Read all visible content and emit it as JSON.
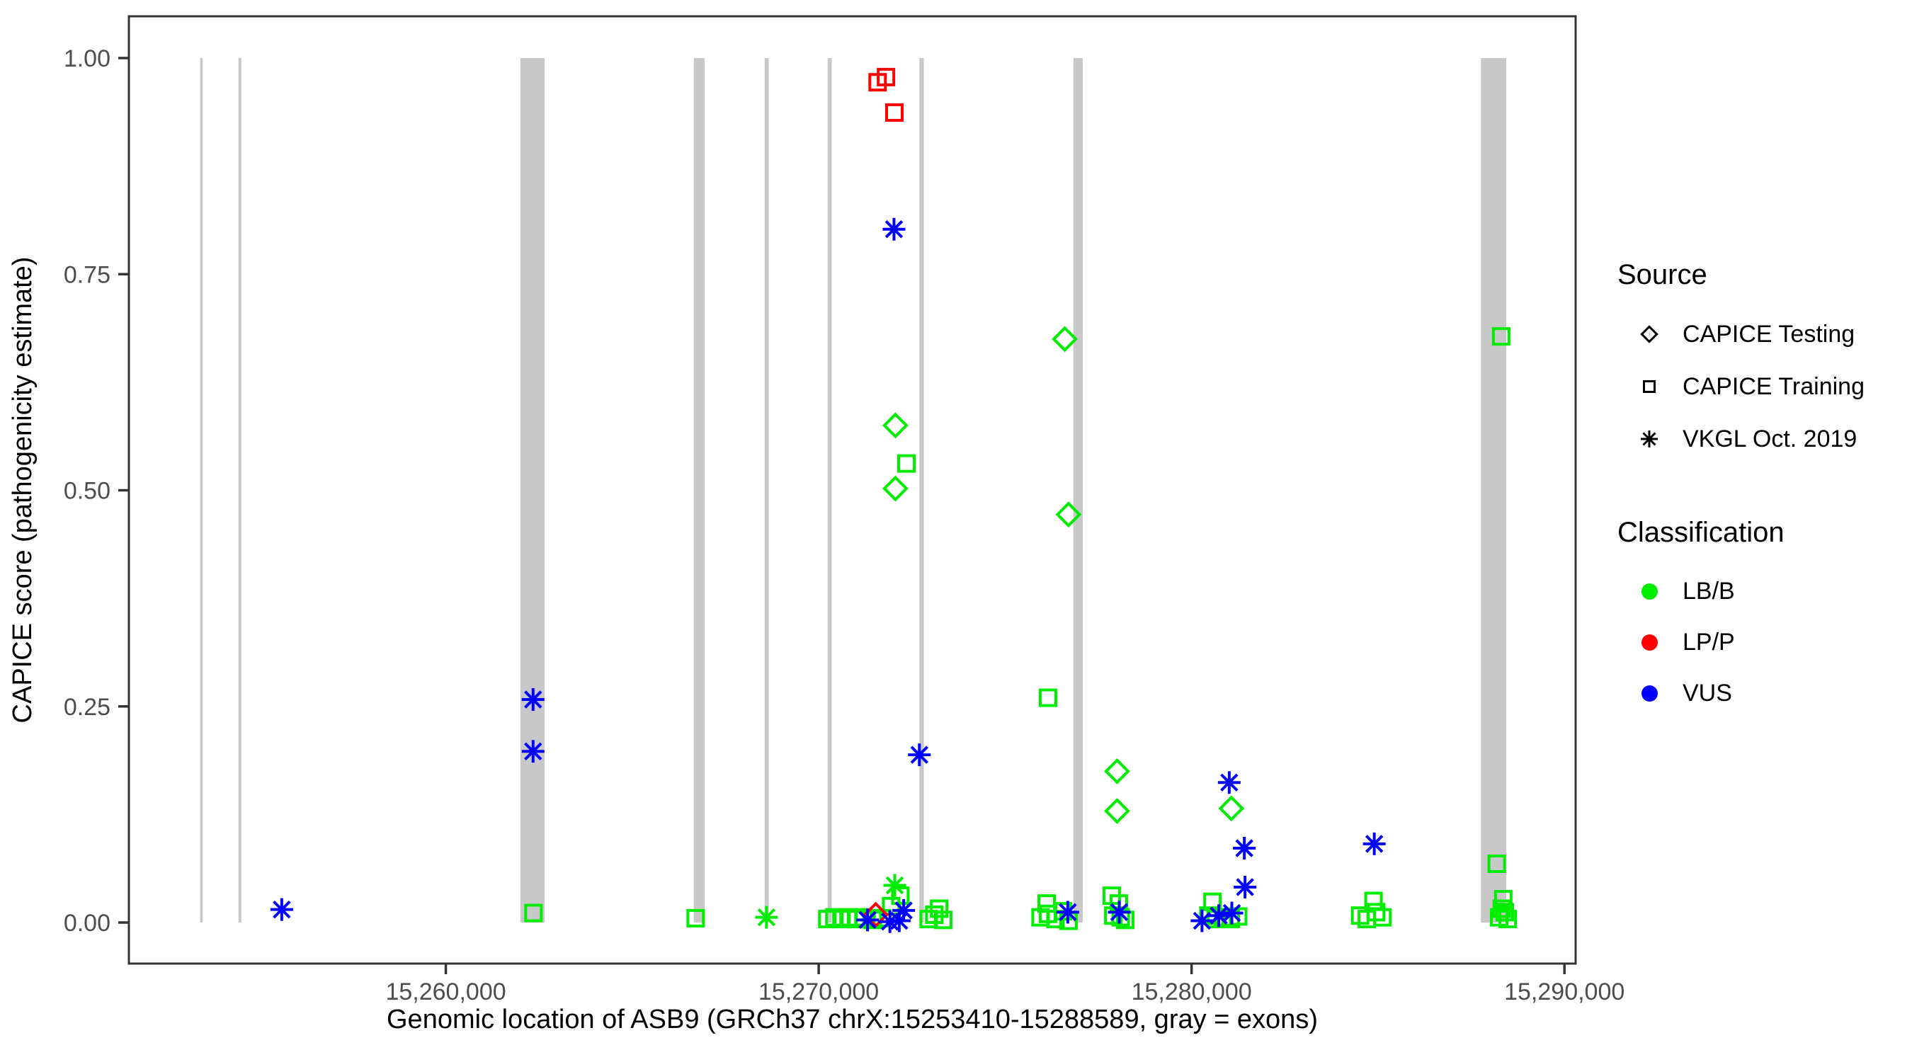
{
  "figure": {
    "background": "#ffffff",
    "panel_border_color": "#333333",
    "tick_label_color": "#4d4d4d",
    "axis_title_color": "#000000"
  },
  "axes": {
    "y": {
      "title": "CAPICE score (pathogenicity estimate)",
      "tick_labels": [
        "0.00",
        "0.25",
        "0.50",
        "0.75",
        "1.00"
      ],
      "tick_values": [
        0,
        0.25,
        0.5,
        0.75,
        1.0
      ]
    },
    "x": {
      "title": "Genomic location of ASB9 (GRCh37 chrX:15253410-15288589, gray = exons)",
      "tick_labels": [
        "15,260,000",
        "15,270,000",
        "15,280,000",
        "15,290,000"
      ],
      "tick_values": [
        15260000,
        15270000,
        15280000,
        15290000
      ]
    }
  },
  "legend": {
    "source": {
      "title": "Source",
      "items": [
        {
          "symbol": "diamond",
          "label": "CAPICE Testing"
        },
        {
          "symbol": "square",
          "label": "CAPICE Training"
        },
        {
          "symbol": "asterisk",
          "label": "VKGL Oct. 2019"
        }
      ]
    },
    "classification": {
      "title": "Classification",
      "items": [
        {
          "label": "LB/B",
          "color": "#00ed00"
        },
        {
          "label": "LP/P",
          "color": "#ff0000"
        },
        {
          "label": "VUS",
          "color": "#0000ff"
        }
      ]
    }
  },
  "chart_data": {
    "type": "scatter",
    "title": "",
    "xlabel": "Genomic location of ASB9 (GRCh37 chrX:15253410-15288589, gray = exons)",
    "ylabel": "CAPICE score (pathogenicity estimate)",
    "xlim": [
      15251500,
      15290300
    ],
    "ylim": [
      0,
      1
    ],
    "grid": false,
    "legend_position": "right",
    "exon_color": "#c8c8c8",
    "gene": "ASB9",
    "gene_region": "GRCh37 chrX:15253410-15288589",
    "exons": [
      [
        15253410,
        15253480
      ],
      [
        15254440,
        15254515
      ],
      [
        15262000,
        15262650
      ],
      [
        15266650,
        15266940
      ],
      [
        15268550,
        15268660
      ],
      [
        15270240,
        15270350
      ],
      [
        15272700,
        15272820
      ],
      [
        15276830,
        15277080
      ],
      [
        15287760,
        15288440
      ]
    ],
    "colors": {
      "LB/B": "#00ed00",
      "LP/P": "#ff0000",
      "VUS": "#0000ff"
    },
    "series": [
      {
        "name": "CAPICE Training",
        "marker": "square",
        "points": [
          [
            15262350,
            0.011,
            "LB/B"
          ],
          [
            15266700,
            0.005,
            "LB/B"
          ],
          [
            15272354,
            0.531,
            "LB/B"
          ],
          [
            15271943,
            0.019,
            "LB/B"
          ],
          [
            15272190,
            0.031,
            "LB/B"
          ],
          [
            15270230,
            0.004,
            "LB/B"
          ],
          [
            15270420,
            0.006,
            "LB/B"
          ],
          [
            15270610,
            0.004,
            "LB/B"
          ],
          [
            15270800,
            0.006,
            "LB/B"
          ],
          [
            15271000,
            0.004,
            "LB/B"
          ],
          [
            15271200,
            0.006,
            "LB/B"
          ],
          [
            15271450,
            0.003,
            "LB/B"
          ],
          [
            15271700,
            0.005,
            "LB/B"
          ],
          [
            15272950,
            0.004,
            "LB/B"
          ],
          [
            15273100,
            0.009,
            "LB/B"
          ],
          [
            15273230,
            0.016,
            "LB/B"
          ],
          [
            15273340,
            0.003,
            "LB/B"
          ],
          [
            15276150,
            0.26,
            "LB/B"
          ],
          [
            15275950,
            0.006,
            "LB/B"
          ],
          [
            15276114,
            0.022,
            "LB/B"
          ],
          [
            15276150,
            0.01,
            "LB/B"
          ],
          [
            15276350,
            0.004,
            "LB/B"
          ],
          [
            15276550,
            0.013,
            "LB/B"
          ],
          [
            15276700,
            0.002,
            "LB/B"
          ],
          [
            15277860,
            0.031,
            "LB/B"
          ],
          [
            15278050,
            0.022,
            "LB/B"
          ],
          [
            15277900,
            0.008,
            "LB/B"
          ],
          [
            15278100,
            0.006,
            "LB/B"
          ],
          [
            15278220,
            0.003,
            "LB/B"
          ],
          [
            15280560,
            0.024,
            "LB/B"
          ],
          [
            15280450,
            0.008,
            "LB/B"
          ],
          [
            15280650,
            0.004,
            "LB/B"
          ],
          [
            15280850,
            0.006,
            "LB/B"
          ],
          [
            15281050,
            0.004,
            "LB/B"
          ],
          [
            15281250,
            0.007,
            "LB/B"
          ],
          [
            15284880,
            0.025,
            "LB/B"
          ],
          [
            15284520,
            0.008,
            "LB/B"
          ],
          [
            15284700,
            0.004,
            "LB/B"
          ],
          [
            15284950,
            0.012,
            "LB/B"
          ],
          [
            15285120,
            0.006,
            "LB/B"
          ],
          [
            15288303,
            0.678,
            "LB/B"
          ],
          [
            15288184,
            0.068,
            "LB/B"
          ],
          [
            15288360,
            0.027,
            "LB/B"
          ],
          [
            15288250,
            0.006,
            "LB/B"
          ],
          [
            15288400,
            0.012,
            "LB/B"
          ],
          [
            15288480,
            0.004,
            "LB/B"
          ],
          [
            15288320,
            0.016,
            "LB/B"
          ],
          [
            15271580,
            0.972,
            "LP/P"
          ],
          [
            15271805,
            0.978,
            "LP/P"
          ],
          [
            15272030,
            0.937,
            "LP/P"
          ]
        ]
      },
      {
        "name": "CAPICE Testing",
        "marker": "diamond",
        "points": [
          [
            15272057,
            0.575,
            "LB/B"
          ],
          [
            15272057,
            0.502,
            "LB/B"
          ],
          [
            15276600,
            0.675,
            "LB/B"
          ],
          [
            15276700,
            0.472,
            "LB/B"
          ],
          [
            15278003,
            0.175,
            "LB/B"
          ],
          [
            15278003,
            0.129,
            "LB/B"
          ],
          [
            15281067,
            0.132,
            "LB/B"
          ],
          [
            15271530,
            0.009,
            "LP/P"
          ]
        ]
      },
      {
        "name": "VKGL Oct. 2019",
        "marker": "asterisk",
        "points": [
          [
            15255600,
            0.015,
            "VUS"
          ],
          [
            15262340,
            0.258,
            "VUS"
          ],
          [
            15262340,
            0.198,
            "VUS"
          ],
          [
            15268600,
            0.006,
            "LB/B"
          ],
          [
            15272020,
            0.802,
            "VUS"
          ],
          [
            15272040,
            0.043,
            "LB/B"
          ],
          [
            15272700,
            0.194,
            "VUS"
          ],
          [
            15271310,
            0.003,
            "VUS"
          ],
          [
            15271910,
            0.001,
            "VUS"
          ],
          [
            15272160,
            0.002,
            "VUS"
          ],
          [
            15272280,
            0.014,
            "VUS"
          ],
          [
            15276680,
            0.012,
            "VUS"
          ],
          [
            15278060,
            0.012,
            "VUS"
          ],
          [
            15281010,
            0.162,
            "VUS"
          ],
          [
            15281415,
            0.086,
            "VUS"
          ],
          [
            15281434,
            0.041,
            "VUS"
          ],
          [
            15280730,
            0.008,
            "VUS"
          ],
          [
            15281080,
            0.011,
            "VUS"
          ],
          [
            15280280,
            0.002,
            "VUS"
          ],
          [
            15284900,
            0.091,
            "VUS"
          ]
        ]
      }
    ]
  }
}
